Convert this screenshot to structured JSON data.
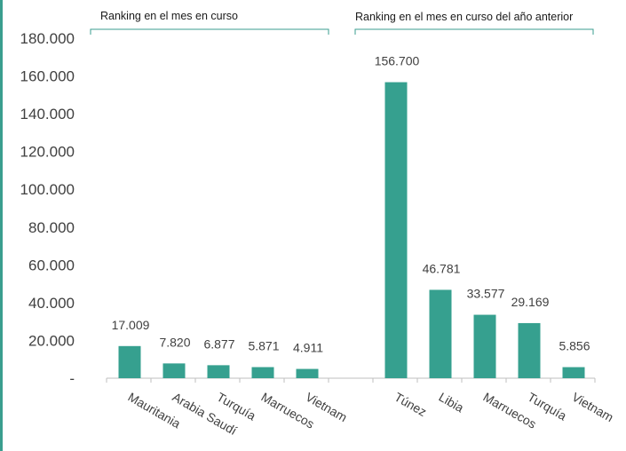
{
  "chart_data": {
    "type": "bar",
    "groups": [
      {
        "label": "Ranking en el mes en curso",
        "categories": [
          "Mauritania",
          "Arabia Saudí",
          "Turquía",
          "Marruecos",
          "Vietnam"
        ],
        "values": [
          17009,
          7820,
          6877,
          5871,
          4911
        ],
        "value_labels": [
          "17.009",
          "7.820",
          "6.877",
          "5.871",
          "4.911"
        ]
      },
      {
        "label": "Ranking en el mes en curso del año anterior",
        "categories": [
          "Túnez",
          "Libia",
          "Marruecos",
          "Turquía",
          "Vietnam"
        ],
        "values": [
          156700,
          46781,
          33577,
          29169,
          5856
        ],
        "value_labels": [
          "156.700",
          "46.781",
          "33.577",
          "29.169",
          "5.856"
        ]
      }
    ],
    "yticks": [
      "-",
      "20.000",
      "40.000",
      "60.000",
      "80.000",
      "100.000",
      "120.000",
      "140.000",
      "160.000",
      "180.000"
    ],
    "ylim": [
      0,
      180000
    ],
    "grid": false,
    "colors": {
      "bar": "#36a08f",
      "bracket": "#3a9e8f",
      "axis": "#bfbfbf"
    }
  }
}
